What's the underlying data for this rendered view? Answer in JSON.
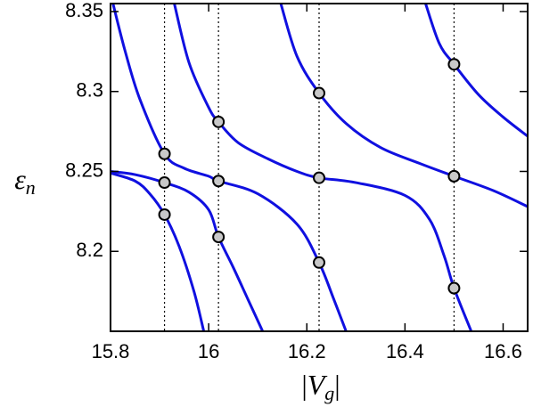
{
  "chart_data": {
    "type": "line",
    "x_label": [
      "|",
      "V",
      "g",
      "|"
    ],
    "y_label": [
      "ε",
      "n"
    ],
    "xlim": [
      15.8,
      16.65
    ],
    "ylim": [
      8.15,
      8.355
    ],
    "xticks": [
      15.8,
      16,
      16.2,
      16.4,
      16.6
    ],
    "yticks": [
      8.2,
      8.25,
      8.3,
      8.35
    ],
    "color": "#1010e0",
    "series": [
      {
        "x": [
          15.8,
          15.85,
          15.88,
          15.91,
          15.94,
          15.97,
          15.99
        ],
        "values": [
          8.249,
          8.244,
          8.236,
          8.223,
          8.203,
          8.175,
          8.15
        ]
      },
      {
        "x": [
          15.8,
          15.85,
          15.91,
          15.96,
          16.0,
          16.02,
          16.05,
          16.08,
          16.11
        ],
        "values": [
          8.25,
          8.248,
          8.243,
          8.237,
          8.226,
          8.209,
          8.19,
          8.17,
          8.15
        ]
      },
      {
        "x": [
          15.805,
          15.83,
          15.86,
          15.91,
          15.95,
          16.0,
          16.02,
          16.1,
          16.18,
          16.225,
          16.255,
          16.28
        ],
        "values": [
          8.355,
          8.325,
          8.295,
          8.261,
          8.252,
          8.247,
          8.244,
          8.236,
          8.217,
          8.193,
          8.17,
          8.15
        ]
      },
      {
        "x": [
          15.93,
          15.96,
          16.0,
          16.02,
          16.06,
          16.12,
          16.18,
          16.225,
          16.3,
          16.4,
          16.45,
          16.48,
          16.5,
          16.535
        ],
        "values": [
          8.355,
          8.318,
          8.29,
          8.281,
          8.268,
          8.258,
          8.25,
          8.246,
          8.243,
          8.235,
          8.22,
          8.197,
          8.177,
          8.15
        ]
      },
      {
        "x": [
          16.147,
          16.18,
          16.225,
          16.28,
          16.35,
          16.43,
          16.5,
          16.58,
          16.65
        ],
        "values": [
          8.355,
          8.322,
          8.299,
          8.28,
          8.265,
          8.255,
          8.247,
          8.238,
          8.228
        ]
      },
      {
        "x": [
          16.442,
          16.47,
          16.5,
          16.55,
          16.6,
          16.65
        ],
        "values": [
          8.355,
          8.33,
          8.317,
          8.298,
          8.284,
          8.272
        ]
      }
    ],
    "vlines": [
      15.91,
      16.02,
      16.225,
      16.5
    ],
    "markers": {
      "x": [
        15.91,
        15.91,
        15.91,
        16.02,
        16.02,
        16.02,
        16.225,
        16.225,
        16.225,
        16.5,
        16.5,
        16.5
      ],
      "values": [
        8.261,
        8.243,
        8.223,
        8.281,
        8.244,
        8.209,
        8.299,
        8.246,
        8.193,
        8.317,
        8.247,
        8.177
      ]
    }
  }
}
